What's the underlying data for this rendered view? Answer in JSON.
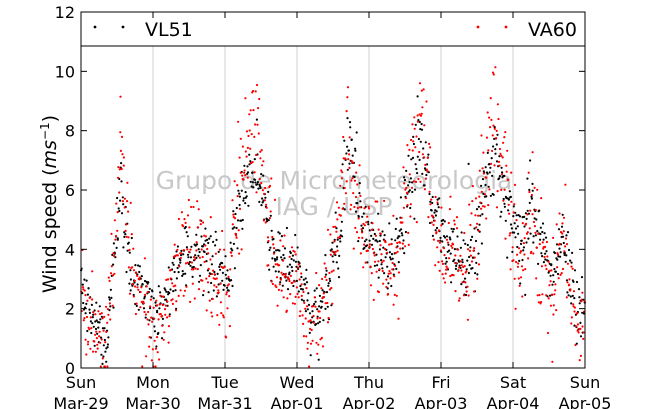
{
  "chart_data": {
    "type": "scatter",
    "title": "",
    "xlabel": "",
    "ylabel": "Wind speed (",
    "ylabel_math": "ms",
    "ylabel_sup": "−1",
    "ylabel_close": ")",
    "ylim": [
      0,
      12
    ],
    "yticks": [
      0,
      2,
      4,
      6,
      8,
      10,
      12
    ],
    "xlim": [
      0,
      7
    ],
    "x_unit": "days",
    "xticks": [
      {
        "day": "Sun",
        "date": "Mar-29",
        "x": 0
      },
      {
        "day": "Mon",
        "date": "Mar-30",
        "x": 1
      },
      {
        "day": "Tue",
        "date": "Mar-31",
        "x": 2
      },
      {
        "day": "Wed",
        "date": "Apr-01",
        "x": 3
      },
      {
        "day": "Thu",
        "date": "Apr-02",
        "x": 4
      },
      {
        "day": "Fri",
        "date": "Apr-03",
        "x": 5
      },
      {
        "day": "Sat",
        "date": "Apr-04",
        "x": 6
      },
      {
        "day": "Sun",
        "date": "Apr-05",
        "x": 7
      }
    ],
    "grid": "vertical",
    "legend_position": "top",
    "watermark": [
      "Grupo de Micrometeorologia",
      "IAG / USP"
    ],
    "series": [
      {
        "name": "VL51",
        "color": "#000000",
        "trend": [
          [
            0.0,
            3.0
          ],
          [
            0.1,
            2.0
          ],
          [
            0.2,
            1.6
          ],
          [
            0.3,
            1.0
          ],
          [
            0.35,
            0.8
          ],
          [
            0.45,
            3.0
          ],
          [
            0.55,
            6.5
          ],
          [
            0.65,
            4.0
          ],
          [
            0.75,
            2.8
          ],
          [
            0.9,
            2.5
          ],
          [
            1.05,
            1.8
          ],
          [
            1.2,
            2.5
          ],
          [
            1.35,
            3.5
          ],
          [
            1.5,
            4.0
          ],
          [
            1.7,
            3.8
          ],
          [
            1.9,
            3.5
          ],
          [
            2.05,
            3.0
          ],
          [
            2.15,
            5.0
          ],
          [
            2.3,
            6.2
          ],
          [
            2.45,
            7.0
          ],
          [
            2.55,
            5.5
          ],
          [
            2.65,
            3.8
          ],
          [
            2.8,
            3.4
          ],
          [
            3.0,
            3.5
          ],
          [
            3.1,
            2.5
          ],
          [
            3.2,
            1.8
          ],
          [
            3.35,
            2.2
          ],
          [
            3.45,
            3.0
          ],
          [
            3.6,
            4.5
          ],
          [
            3.7,
            7.5
          ],
          [
            3.8,
            6.5
          ],
          [
            3.9,
            4.8
          ],
          [
            4.1,
            4.2
          ],
          [
            4.25,
            3.6
          ],
          [
            4.4,
            3.9
          ],
          [
            4.55,
            6.0
          ],
          [
            4.7,
            7.6
          ],
          [
            4.8,
            7.0
          ],
          [
            4.9,
            5.0
          ],
          [
            5.05,
            4.2
          ],
          [
            5.2,
            3.8
          ],
          [
            5.35,
            3.5
          ],
          [
            5.5,
            4.5
          ],
          [
            5.65,
            6.5
          ],
          [
            5.75,
            7.2
          ],
          [
            5.85,
            6.0
          ],
          [
            6.0,
            5.0
          ],
          [
            6.1,
            4.0
          ],
          [
            6.25,
            5.5
          ],
          [
            6.4,
            4.0
          ],
          [
            6.55,
            3.0
          ],
          [
            6.7,
            4.5
          ],
          [
            6.8,
            3.0
          ],
          [
            6.9,
            2.0
          ],
          [
            7.0,
            1.8
          ]
        ]
      },
      {
        "name": "VA60",
        "color": "#ff0000",
        "trend": [
          [
            0.0,
            2.5
          ],
          [
            0.1,
            1.9
          ],
          [
            0.2,
            1.4
          ],
          [
            0.3,
            0.8
          ],
          [
            0.35,
            0.5
          ],
          [
            0.45,
            3.5
          ],
          [
            0.55,
            7.0
          ],
          [
            0.65,
            4.5
          ],
          [
            0.75,
            3.0
          ],
          [
            0.9,
            2.0
          ],
          [
            1.05,
            1.2
          ],
          [
            1.2,
            2.0
          ],
          [
            1.35,
            4.0
          ],
          [
            1.5,
            4.5
          ],
          [
            1.7,
            3.5
          ],
          [
            1.9,
            3.0
          ],
          [
            2.05,
            2.5
          ],
          [
            2.15,
            5.5
          ],
          [
            2.3,
            7.5
          ],
          [
            2.45,
            8.5
          ],
          [
            2.55,
            6.0
          ],
          [
            2.65,
            3.5
          ],
          [
            2.8,
            3.0
          ],
          [
            3.0,
            3.0
          ],
          [
            3.1,
            2.0
          ],
          [
            3.2,
            1.4
          ],
          [
            3.35,
            1.8
          ],
          [
            3.45,
            3.5
          ],
          [
            3.6,
            5.0
          ],
          [
            3.7,
            7.0
          ],
          [
            3.8,
            6.0
          ],
          [
            3.9,
            4.5
          ],
          [
            4.1,
            4.0
          ],
          [
            4.25,
            3.2
          ],
          [
            4.4,
            3.5
          ],
          [
            4.55,
            6.5
          ],
          [
            4.7,
            8.2
          ],
          [
            4.8,
            7.0
          ],
          [
            4.9,
            4.5
          ],
          [
            5.05,
            3.8
          ],
          [
            5.2,
            3.4
          ],
          [
            5.35,
            3.0
          ],
          [
            5.5,
            5.0
          ],
          [
            5.65,
            7.0
          ],
          [
            5.75,
            8.0
          ],
          [
            5.85,
            6.5
          ],
          [
            6.0,
            5.0
          ],
          [
            6.1,
            3.5
          ],
          [
            6.25,
            5.0
          ],
          [
            6.4,
            3.5
          ],
          [
            6.55,
            2.5
          ],
          [
            6.7,
            4.0
          ],
          [
            6.8,
            2.5
          ],
          [
            6.9,
            1.8
          ],
          [
            7.0,
            1.5
          ]
        ]
      }
    ]
  }
}
